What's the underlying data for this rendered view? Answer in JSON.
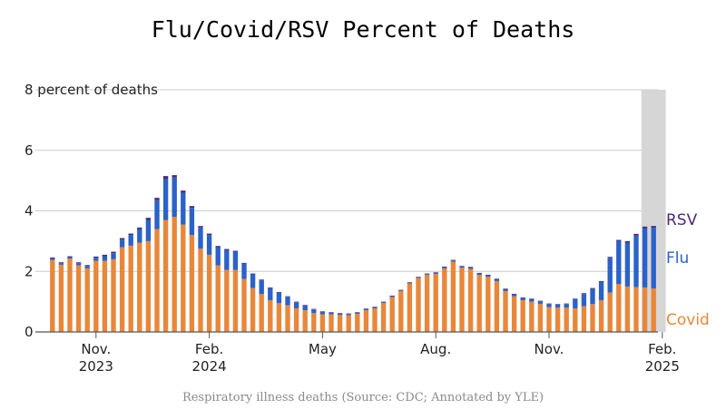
{
  "chart_data": {
    "type": "bar",
    "stacked": true,
    "title": "Flu/Covid/RSV Percent of Deaths",
    "caption": "Respiratory illness deaths (Source: CDC; Annotated by YLE)",
    "ylabel": "percent of deaths",
    "ylim": [
      0,
      8
    ],
    "yticks": [
      {
        "value": 0,
        "label": "0"
      },
      {
        "value": 2,
        "label": "2"
      },
      {
        "value": 4,
        "label": "4"
      },
      {
        "value": 6,
        "label": "6"
      },
      {
        "value": 8,
        "label": "8 percent of deaths"
      }
    ],
    "xticks": [
      {
        "index": 5,
        "line1": "Nov.",
        "line2": "2023"
      },
      {
        "index": 18,
        "line1": "Feb.",
        "line2": "2024"
      },
      {
        "index": 31,
        "line1": "May",
        "line2": ""
      },
      {
        "index": 44,
        "line1": "Aug.",
        "line2": ""
      },
      {
        "index": 57,
        "line1": "Nov.",
        "line2": ""
      },
      {
        "index": 70,
        "line1": "Feb.",
        "line2": "2025"
      }
    ],
    "highlight_range": [
      68,
      70
    ],
    "colors": {
      "covid": "#e8873a",
      "flu": "#2a62c9",
      "rsv": "#4a2a78",
      "highlight": "#d6d6d6",
      "grid": "#cccccc"
    },
    "series": [
      {
        "name": "Covid",
        "color": "#e8873a",
        "values": [
          2.38,
          2.22,
          2.42,
          2.2,
          2.1,
          2.35,
          2.35,
          2.4,
          2.8,
          2.85,
          2.95,
          3.0,
          3.4,
          3.7,
          3.8,
          3.55,
          3.2,
          2.75,
          2.55,
          2.2,
          2.05,
          2.05,
          1.75,
          1.45,
          1.25,
          1.05,
          0.95,
          0.88,
          0.78,
          0.72,
          0.62,
          0.58,
          0.58,
          0.56,
          0.55,
          0.6,
          0.72,
          0.78,
          0.95,
          1.15,
          1.35,
          1.6,
          1.78,
          1.88,
          1.92,
          2.1,
          2.32,
          2.12,
          2.08,
          1.88,
          1.82,
          1.68,
          1.35,
          1.18,
          1.05,
          1.0,
          0.93,
          0.82,
          0.8,
          0.8,
          0.78,
          0.85,
          0.92,
          1.05,
          1.3,
          1.58,
          1.5,
          1.48,
          1.47,
          1.44
        ]
      },
      {
        "name": "Flu",
        "color": "#2a62c9",
        "values": [
          0.05,
          0.05,
          0.05,
          0.07,
          0.08,
          0.1,
          0.15,
          0.2,
          0.25,
          0.35,
          0.45,
          0.7,
          0.95,
          1.35,
          1.3,
          1.05,
          0.9,
          0.7,
          0.65,
          0.6,
          0.65,
          0.6,
          0.5,
          0.45,
          0.45,
          0.4,
          0.35,
          0.28,
          0.2,
          0.15,
          0.12,
          0.08,
          0.05,
          0.04,
          0.04,
          0.03,
          0.03,
          0.03,
          0.03,
          0.03,
          0.02,
          0.02,
          0.02,
          0.03,
          0.03,
          0.04,
          0.04,
          0.04,
          0.05,
          0.05,
          0.05,
          0.06,
          0.06,
          0.06,
          0.07,
          0.08,
          0.08,
          0.1,
          0.1,
          0.12,
          0.3,
          0.4,
          0.5,
          0.6,
          1.15,
          1.42,
          1.45,
          1.7,
          1.95,
          2.0
        ]
      },
      {
        "name": "RSV",
        "color": "#4a2a78",
        "values": [
          0.03,
          0.03,
          0.03,
          0.03,
          0.03,
          0.04,
          0.05,
          0.05,
          0.05,
          0.05,
          0.05,
          0.07,
          0.08,
          0.1,
          0.08,
          0.07,
          0.06,
          0.05,
          0.05,
          0.04,
          0.04,
          0.03,
          0.03,
          0.03,
          0.03,
          0.02,
          0.02,
          0.02,
          0.02,
          0.02,
          0.02,
          0.02,
          0.02,
          0.02,
          0.02,
          0.02,
          0.02,
          0.02,
          0.02,
          0.02,
          0.02,
          0.02,
          0.02,
          0.02,
          0.02,
          0.02,
          0.02,
          0.02,
          0.02,
          0.02,
          0.02,
          0.02,
          0.02,
          0.02,
          0.02,
          0.02,
          0.02,
          0.02,
          0.02,
          0.02,
          0.02,
          0.03,
          0.03,
          0.03,
          0.03,
          0.04,
          0.05,
          0.06,
          0.06,
          0.06
        ]
      }
    ],
    "legend": [
      {
        "label": "RSV",
        "color": "#4a2a78"
      },
      {
        "label": "Flu",
        "color": "#2a62c9"
      },
      {
        "label": "Covid",
        "color": "#e8873a"
      }
    ]
  }
}
